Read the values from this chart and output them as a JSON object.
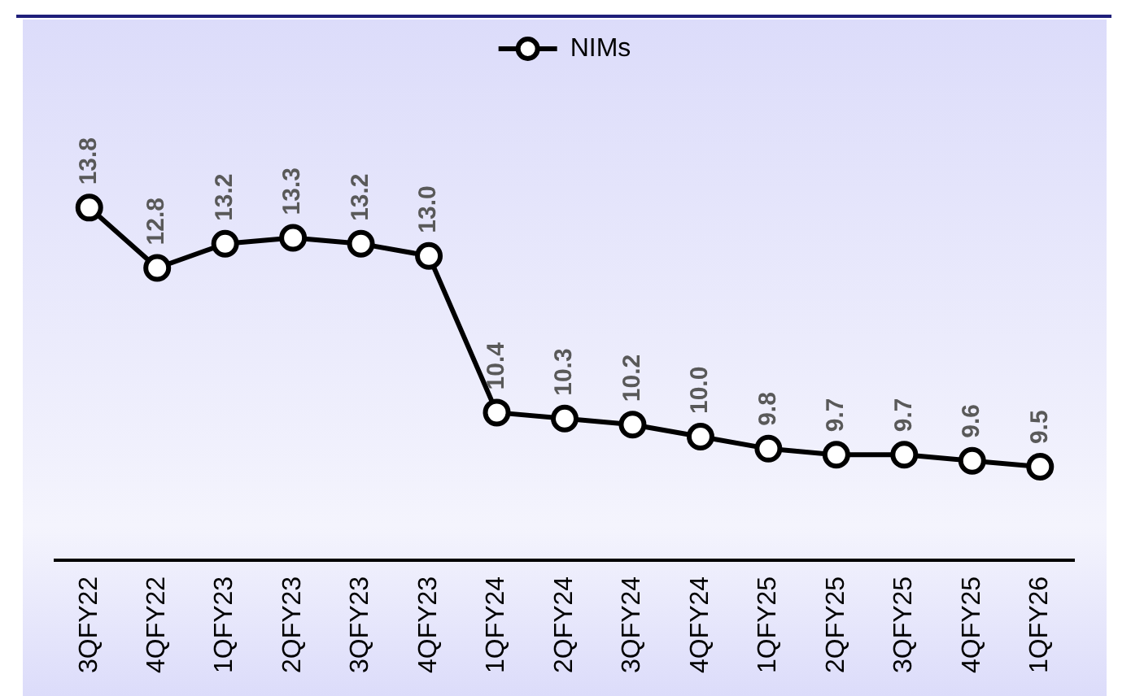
{
  "chart_data": {
    "type": "line",
    "categories": [
      "3QFY22",
      "4QFY22",
      "1QFY23",
      "2QFY23",
      "3QFY23",
      "4QFY23",
      "1QFY24",
      "2QFY24",
      "3QFY24",
      "4QFY24",
      "1QFY25",
      "2QFY25",
      "3QFY25",
      "4QFY25",
      "1QFY26"
    ],
    "series": [
      {
        "name": "NIMs",
        "color": "#000000",
        "values": [
          13.8,
          12.8,
          13.2,
          13.3,
          13.2,
          13.0,
          10.4,
          10.3,
          10.2,
          10.0,
          9.8,
          9.7,
          9.7,
          9.6,
          9.5
        ],
        "value_labels": [
          "13.8",
          "12.8",
          "13.2",
          "13.3",
          "13.2",
          "13.0",
          "10.4",
          "10.3",
          "10.2",
          "10.0",
          "9.8",
          "9.7",
          "9.7",
          "9.6",
          "9.5"
        ]
      }
    ],
    "legend": "top",
    "marker": "circle",
    "grid": false
  }
}
